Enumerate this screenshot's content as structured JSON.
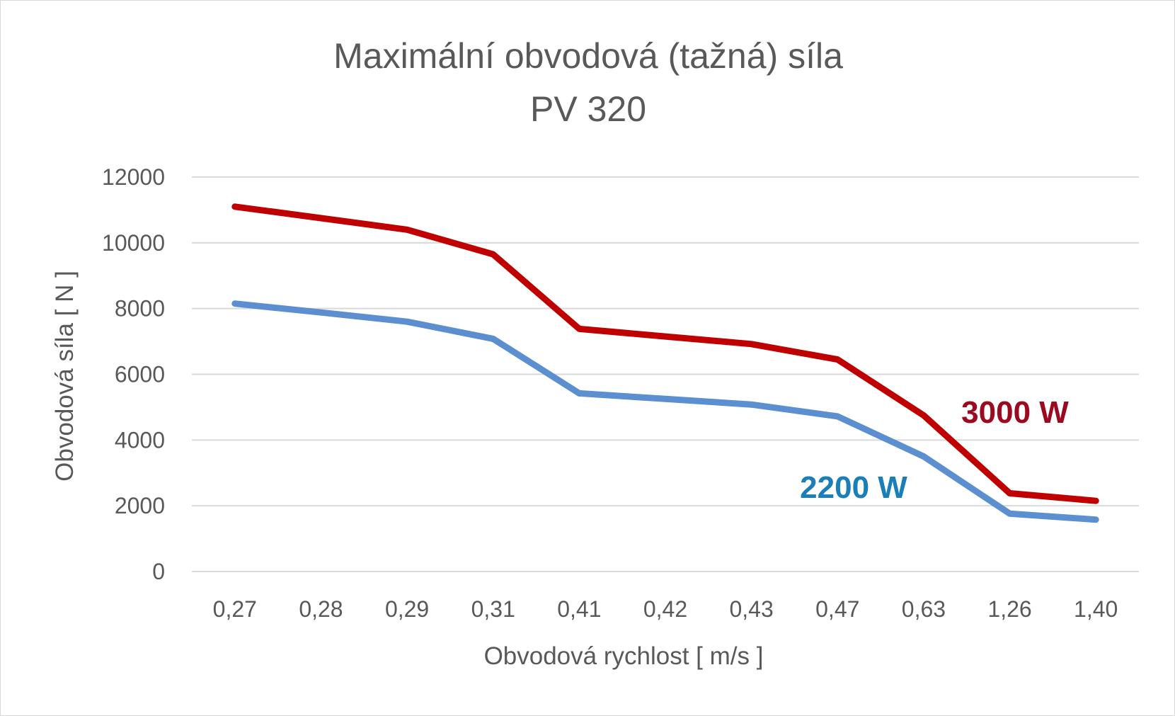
{
  "chart_data": {
    "type": "line",
    "title": "Maximální obvodová (tažná) síla",
    "subtitle": "PV 320",
    "xlabel": "Obvodová rychlost  [ m/s ]",
    "ylabel": "Obvodová síla  [ N ]",
    "categories": [
      "0,27",
      "0,28",
      "0,29",
      "0,31",
      "0,41",
      "0,42",
      "0,43",
      "0,47",
      "0,63",
      "1,26",
      "1,40"
    ],
    "ylim": [
      0,
      12000
    ],
    "yticks": [
      "0",
      "2000",
      "4000",
      "6000",
      "8000",
      "10000",
      "12000"
    ],
    "grid": true,
    "legend": "none",
    "series": [
      {
        "name": "3000 W",
        "color": "#c00000",
        "label_color": "#9b0a1e",
        "values": [
          11100,
          10750,
          10400,
          9650,
          7380,
          7150,
          6920,
          6450,
          4750,
          2380,
          2150
        ]
      },
      {
        "name": "2200 W",
        "color": "#5b8fd0",
        "label_color": "#1a7fb8",
        "values": [
          8150,
          7880,
          7600,
          7080,
          5420,
          5250,
          5080,
          4720,
          3500,
          1760,
          1580
        ]
      }
    ]
  }
}
